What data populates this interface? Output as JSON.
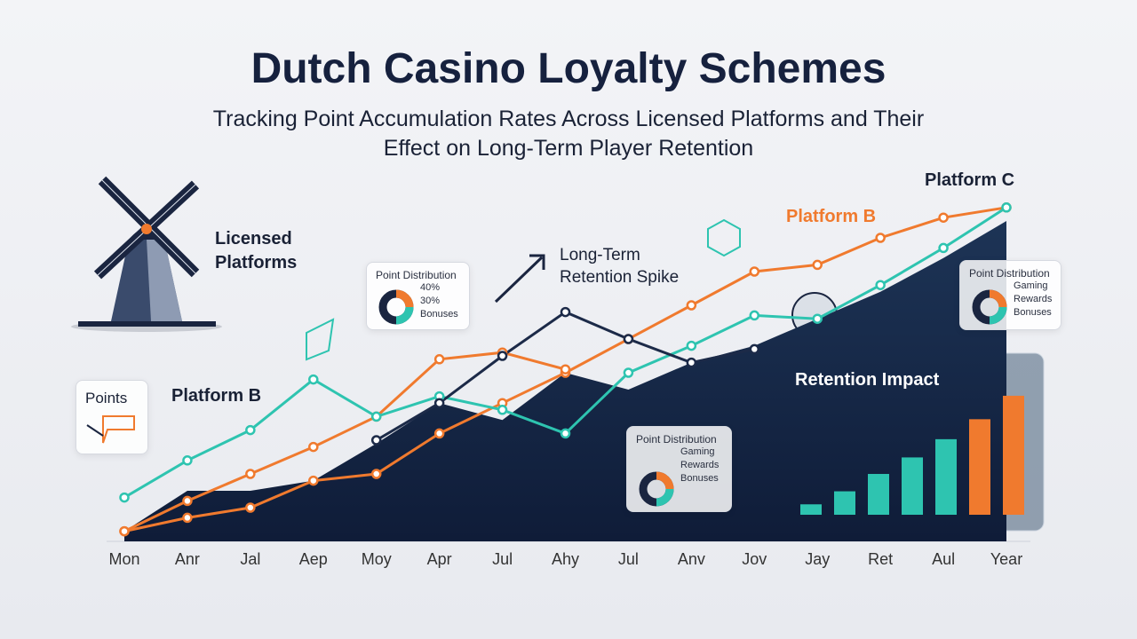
{
  "title": "Dutch Casino Loyalty Schemes",
  "subtitle": "Tracking Point Accumulation Rates Across Licensed Platforms and Their Effect on Long-Term Player Retention",
  "side_label": "Licensed Platforms",
  "points_card": "Points",
  "cards": [
    {
      "title": "Point Distribution",
      "items": [
        "40%",
        "30%",
        "Bonuses"
      ]
    },
    {
      "title": "Point Distribution",
      "items": [
        "Gaming",
        "Rewards",
        "Bonuses"
      ]
    },
    {
      "title": "Point Distribution",
      "items": [
        "Gaming",
        "Rewards",
        "Bonuses"
      ]
    }
  ],
  "chart_data": [
    {
      "type": "line",
      "categories": [
        "Mon",
        "Anr",
        "Jal",
        "Aep",
        "Moy",
        "Apr",
        "Jul",
        "Ahy",
        "Jul",
        "Anv",
        "Jov",
        "Jay",
        "Ret",
        "Aul",
        "Year"
      ],
      "ylim": [
        0,
        100
      ],
      "series": [
        {
          "color": "#16264a",
          "fill": true,
          "values": [
            3,
            15,
            15,
            18,
            29,
            41,
            36,
            50,
            45,
            53,
            58,
            66,
            74,
            84,
            95
          ]
        },
        {
          "color": "#f07a2e",
          "values": [
            3,
            7,
            10,
            18,
            20,
            32,
            41,
            50,
            60,
            70,
            80,
            82,
            90,
            96,
            99
          ]
        },
        {
          "color": "#f07a2e",
          "values": [
            3,
            12,
            20,
            28,
            37,
            54,
            56,
            51,
            null,
            null,
            null,
            null,
            null,
            null,
            null
          ]
        },
        {
          "color": "#2ec4b0",
          "values": [
            13,
            24,
            33,
            48,
            37,
            43,
            39,
            32,
            50,
            58,
            67,
            66,
            76,
            87,
            99
          ]
        },
        {
          "color": "#1c2a48",
          "values": [
            null,
            null,
            null,
            null,
            30,
            41,
            55,
            68,
            60,
            53,
            57,
            null,
            null,
            null,
            null
          ]
        }
      ],
      "annotations": [
        "Platform C",
        "Platform B",
        "Platform B",
        "Long-Term Retention Spike"
      ]
    },
    {
      "type": "bar",
      "title": "Retention Impact",
      "values": [
        12,
        27,
        47,
        66,
        87,
        110,
        137
      ],
      "colors": [
        "#2ec4b0",
        "#2ec4b0",
        "#2ec4b0",
        "#2ec4b0",
        "#2ec4b0",
        "#f07a2e",
        "#f07a2e"
      ],
      "ylim": [
        0,
        140
      ]
    }
  ]
}
